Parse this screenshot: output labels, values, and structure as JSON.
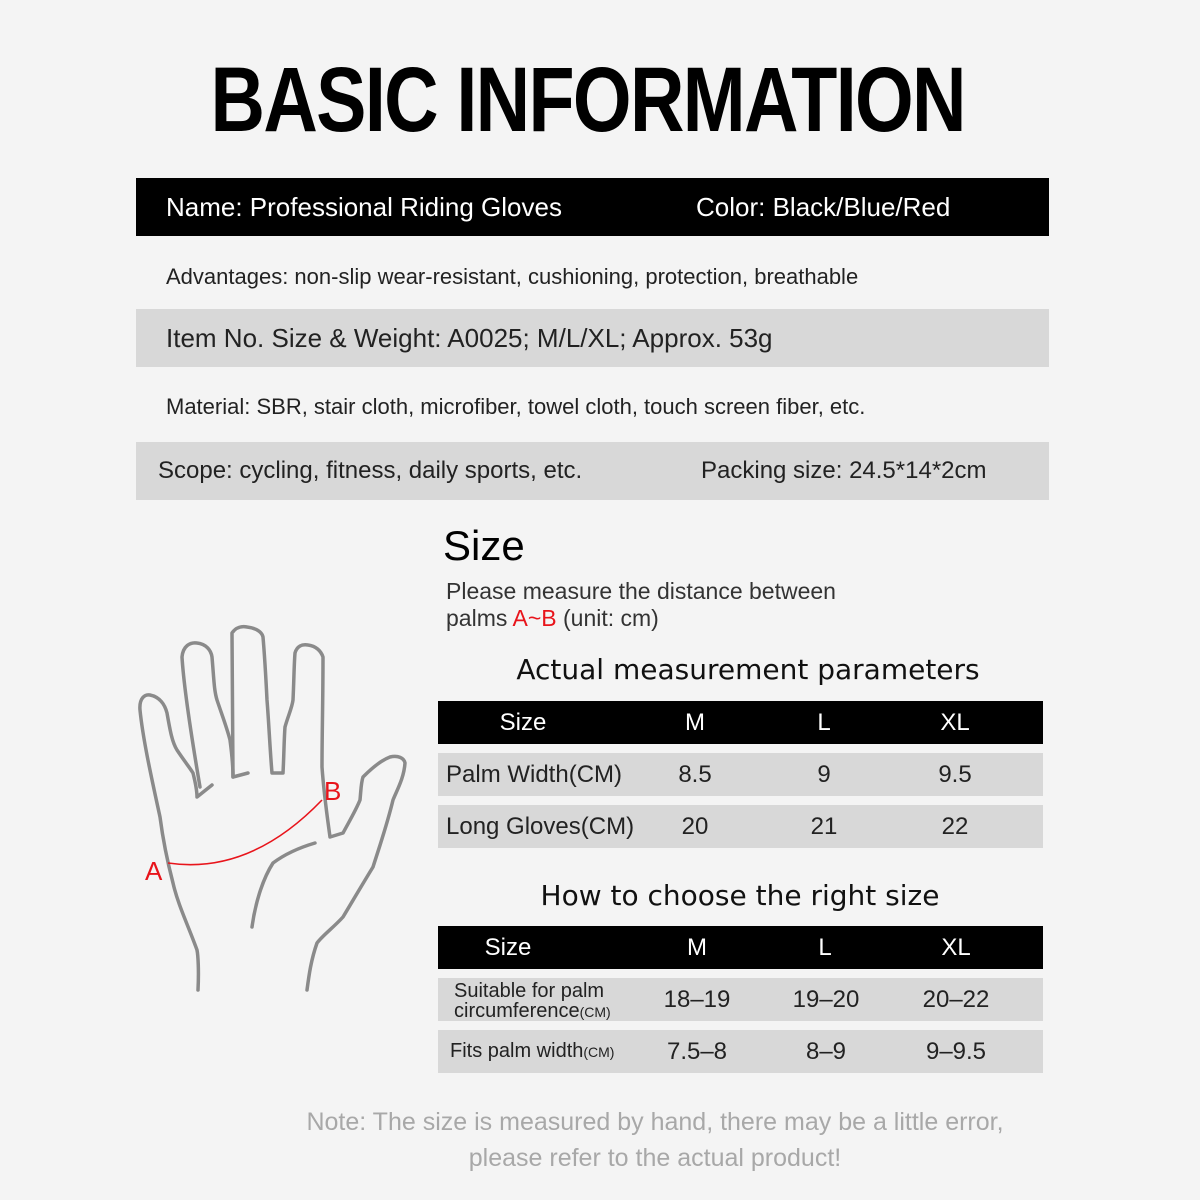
{
  "title": "BASIC INFORMATION",
  "info": {
    "name": "Name: Professional Riding Gloves",
    "color": "Color: Black/Blue/Red",
    "advantages": "Advantages: non-slip wear-resistant, cushioning, protection, breathable",
    "item": "Item No. Size & Weight: A0025; M/L/XL; Approx. 53g",
    "material": "Material: SBR, stair cloth, microfiber, towel cloth, touch screen fiber, etc.",
    "scope": "Scope: cycling, fitness, daily sports, etc.",
    "packing": "Packing size: 24.5*14*2cm"
  },
  "size": {
    "heading": "Size",
    "line1": "Please measure the distance between",
    "line2_pre": "palms ",
    "line2_ab": "A~B",
    "line2_post": " (unit: cm)",
    "label_a": "A",
    "label_b": "B",
    "accent": "#e8141b"
  },
  "table1": {
    "title": "Actual measurement parameters",
    "headers": [
      "Size",
      "M",
      "L",
      "XL"
    ],
    "rows": [
      [
        "Palm Width(CM)",
        "8.5",
        "9",
        "9.5"
      ],
      [
        "Long Gloves(CM)",
        "20",
        "21",
        "22"
      ]
    ]
  },
  "table2": {
    "title": "How to choose the right size",
    "headers": [
      "Size",
      "M",
      "L",
      "XL"
    ],
    "rows": [
      {
        "label1": "Suitable for palm",
        "label2": "circumference",
        "unit": "(CM)",
        "values": [
          "18–19",
          "19–20",
          "20–22"
        ]
      },
      {
        "label1": "Fits palm width",
        "unit": "(CM)",
        "values": [
          "7.5–8",
          "8–9",
          "9–9.5"
        ]
      }
    ]
  },
  "note": {
    "line1": "Note: The size is measured by hand, there may be a little error,",
    "line2": "please refer to the actual product!"
  }
}
